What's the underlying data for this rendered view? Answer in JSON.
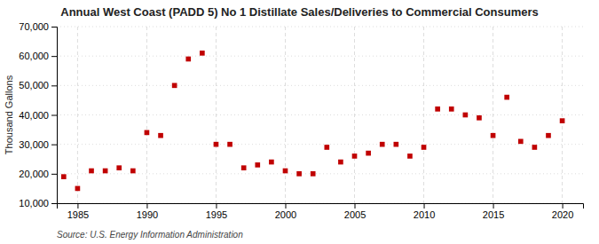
{
  "chart_data": {
    "type": "scatter",
    "title": "Annual West Coast (PADD 5) No 1 Distillate Sales/Deliveries to Commercial Consumers",
    "ylabel": "Thousand Gallons",
    "annotation": "Source: U.S. Energy Information Administration",
    "x": [
      1984,
      1985,
      1986,
      1987,
      1988,
      1989,
      1990,
      1991,
      1992,
      1993,
      1994,
      1995,
      1996,
      1997,
      1998,
      1999,
      2000,
      2001,
      2002,
      2003,
      2004,
      2005,
      2006,
      2007,
      2008,
      2009,
      2010,
      2011,
      2012,
      2013,
      2014,
      2015,
      2016,
      2017,
      2018,
      2019,
      2020
    ],
    "values": [
      19000,
      15000,
      21000,
      21000,
      22000,
      21000,
      34000,
      33000,
      50000,
      59000,
      61000,
      30000,
      30000,
      22000,
      23000,
      24000,
      21000,
      20000,
      20000,
      29000,
      24000,
      26000,
      27000,
      30000,
      30000,
      26000,
      29000,
      42000,
      42000,
      40000,
      39000,
      33000,
      46000,
      31000,
      29000,
      33000,
      38000
    ],
    "color": "#c00000",
    "marker": "square",
    "xlim": [
      1983.5,
      2021.5
    ],
    "xticks": [
      1985,
      1990,
      1995,
      2000,
      2005,
      2010,
      2015,
      2020
    ],
    "ylim": [
      10000,
      70000
    ],
    "yticks": [
      {
        "value": 10000,
        "label": "10,000"
      },
      {
        "value": 20000,
        "label": "20,000"
      },
      {
        "value": 30000,
        "label": "30,000"
      },
      {
        "value": 40000,
        "label": "40,000"
      },
      {
        "value": 50000,
        "label": "50,000"
      },
      {
        "value": 60000,
        "label": "60,000"
      },
      {
        "value": 70000,
        "label": "70,000"
      }
    ],
    "grid": true
  }
}
